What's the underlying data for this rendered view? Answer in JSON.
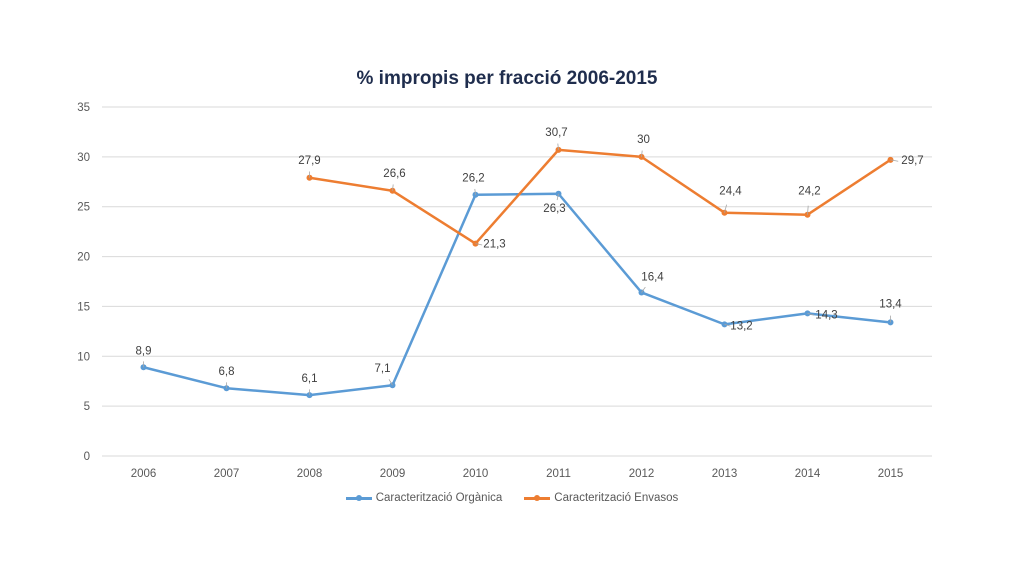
{
  "chart_data": {
    "type": "line",
    "title": "% impropis per fracció 2006-2015",
    "xlabel": "",
    "ylabel": "",
    "ylim": [
      0,
      35
    ],
    "yticks": [
      "0",
      "5",
      "10",
      "15",
      "20",
      "25",
      "30",
      "35"
    ],
    "ytick_values": [
      0,
      5,
      10,
      15,
      20,
      25,
      30,
      35
    ],
    "categories": [
      "2006",
      "2007",
      "2008",
      "2009",
      "2010",
      "2011",
      "2012",
      "2013",
      "2014",
      "2015"
    ],
    "grid": true,
    "legend": "bottom",
    "series": [
      {
        "name": "Caracterització Orgànica",
        "color": "#5b9bd5",
        "values": [
          8.9,
          6.8,
          6.1,
          7.1,
          26.2,
          26.3,
          16.4,
          13.2,
          14.3,
          13.4
        ],
        "labels": [
          "8,9",
          "6,8",
          "6,1",
          "7,1",
          "26,2",
          "26,3",
          "16,4",
          "13,2",
          "14,3",
          "13,4"
        ]
      },
      {
        "name": "Caracterització Envasos",
        "color": "#ed7d31",
        "values": [
          null,
          null,
          27.9,
          26.6,
          21.3,
          30.7,
          30,
          24.4,
          24.2,
          29.7
        ],
        "labels": [
          null,
          null,
          "27,9",
          "26,6",
          "21,3",
          "30,7",
          "30",
          "24,4",
          "24,2",
          "29,7"
        ]
      }
    ]
  }
}
